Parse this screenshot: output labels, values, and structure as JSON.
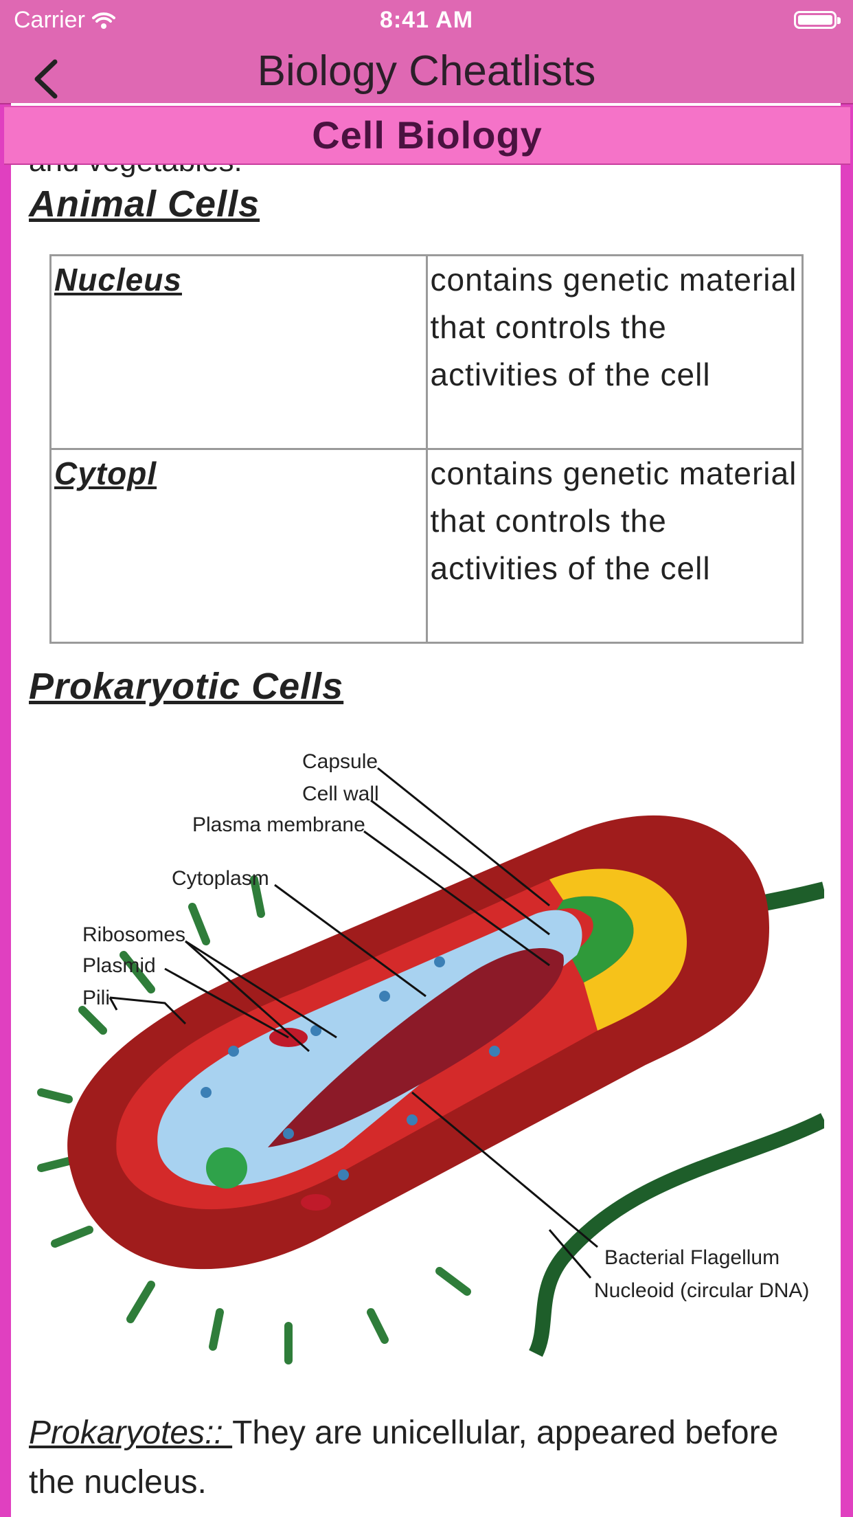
{
  "status_bar": {
    "carrier": "Carrier",
    "time": "8:41 AM"
  },
  "nav": {
    "title": "Biology Cheatlists"
  },
  "section_title": "Cell Biology",
  "partial_text": "and vegetables.",
  "animal_cells": {
    "heading": "Animal Cells",
    "rows": [
      {
        "term": "Nucleus",
        "definition": "contains genetic material that controls the activities of the cell"
      },
      {
        "term": "Cytopl",
        "definition": "contains genetic material that controls the activities of the cell"
      }
    ]
  },
  "prokaryotic": {
    "heading": "Prokaryotic Cells",
    "diagram_labels": {
      "capsule": "Capsule",
      "cell_wall": "Cell wall",
      "plasma_membrane": "Plasma membrane",
      "cytoplasm": "Cytoplasm",
      "ribosomes": "Ribosomes",
      "plasmid": "Plasmid",
      "pili": "Pili",
      "flagellum": "Bacterial Flagellum",
      "nucleoid": "Nucleoid (circular DNA)"
    },
    "term": "Prokaryotes:: ",
    "description": "They are unicellular, appeared before the nucleus."
  },
  "colors": {
    "frame": "#e040c0",
    "navbar": "#df68b3",
    "section_bar": "#f573c8",
    "section_text": "#4a1240"
  }
}
